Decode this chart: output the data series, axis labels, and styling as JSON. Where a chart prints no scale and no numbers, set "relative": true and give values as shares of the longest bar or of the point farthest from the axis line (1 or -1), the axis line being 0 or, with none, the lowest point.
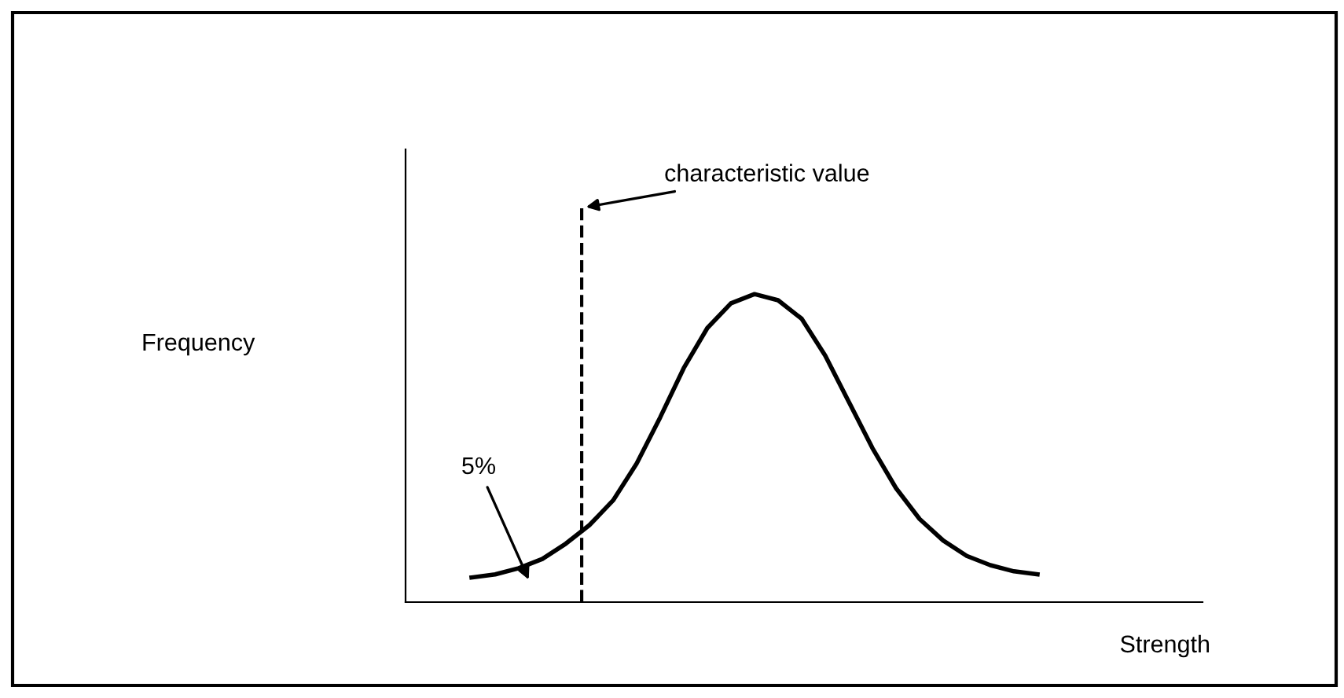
{
  "chart_data": {
    "type": "line",
    "relative": true,
    "xlabel": "Strength",
    "categories": [
      null,
      null,
      null,
      null,
      null,
      null,
      null,
      null,
      null,
      null,
      null,
      null,
      null,
      null,
      null,
      null,
      null,
      null,
      null,
      null,
      null,
      null,
      null,
      null,
      null
    ],
    "series": [
      {
        "color": "#000000",
        "values": [
          0.08,
          0.09,
          0.11,
          0.14,
          0.19,
          0.25,
          0.33,
          0.45,
          0.6,
          0.76,
          0.89,
          0.97,
          1.0,
          0.98,
          0.92,
          0.8,
          0.65,
          0.5,
          0.37,
          0.27,
          0.2,
          0.15,
          0.12,
          0.1,
          0.09
        ]
      }
    ],
    "annotations": [
      "5%",
      "characteristic value",
      "Frequency"
    ],
    "legend": false,
    "marker": "none",
    "line_style": "solid"
  }
}
